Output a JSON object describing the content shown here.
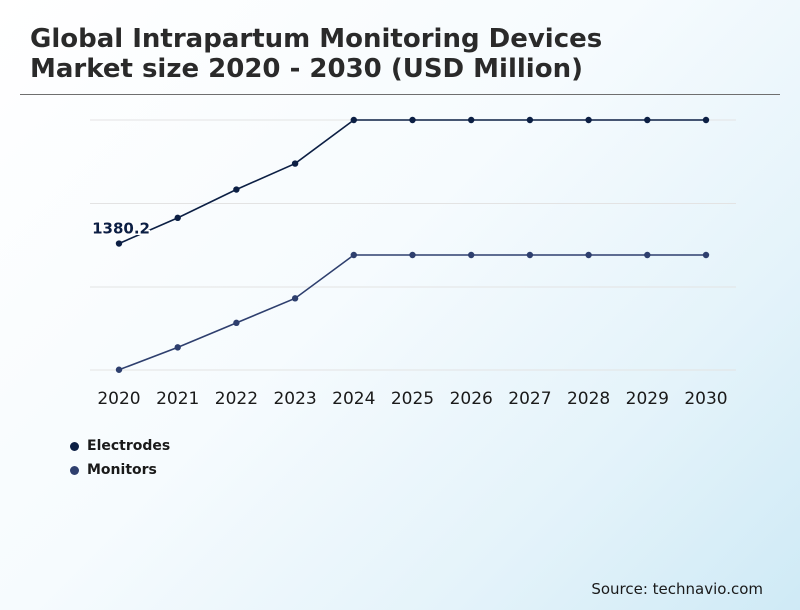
{
  "title": {
    "line1": "Global Intrapartum Monitoring Devices",
    "line2": "Market size 2020 - 2030 (USD Million)"
  },
  "source": "Source: technavio.com",
  "colors": {
    "electrodes": "#0c1f44",
    "monitors": "#2e3f6e",
    "grid": "#e3e3e3"
  },
  "chart_data": {
    "type": "line",
    "categories": [
      "2020",
      "2021",
      "2022",
      "2023",
      "2024",
      "2025",
      "2026",
      "2027",
      "2028",
      "2029",
      "2030"
    ],
    "series": [
      {
        "name": "Electrodes",
        "values": [
          1380.2,
          1488,
          1607,
          1716,
          1899,
          1899,
          1899,
          1899,
          1899,
          1899,
          1899
        ],
        "labels": [
          "1380.2",
          "",
          "",
          "",
          "",
          "",
          "",
          "",
          "",
          "",
          ""
        ]
      },
      {
        "name": "Monitors",
        "values": [
          850,
          944,
          1047,
          1150,
          1332,
          1332,
          1332,
          1332,
          1332,
          1332,
          1332
        ],
        "labels": [
          "",
          "",
          "",
          "",
          "",
          "",
          "",
          "",
          "",
          "",
          ""
        ]
      }
    ],
    "ylim": [
      849,
      1899
    ],
    "grid": true,
    "legend": "bottom-left",
    "xlabel": "",
    "ylabel": ""
  }
}
